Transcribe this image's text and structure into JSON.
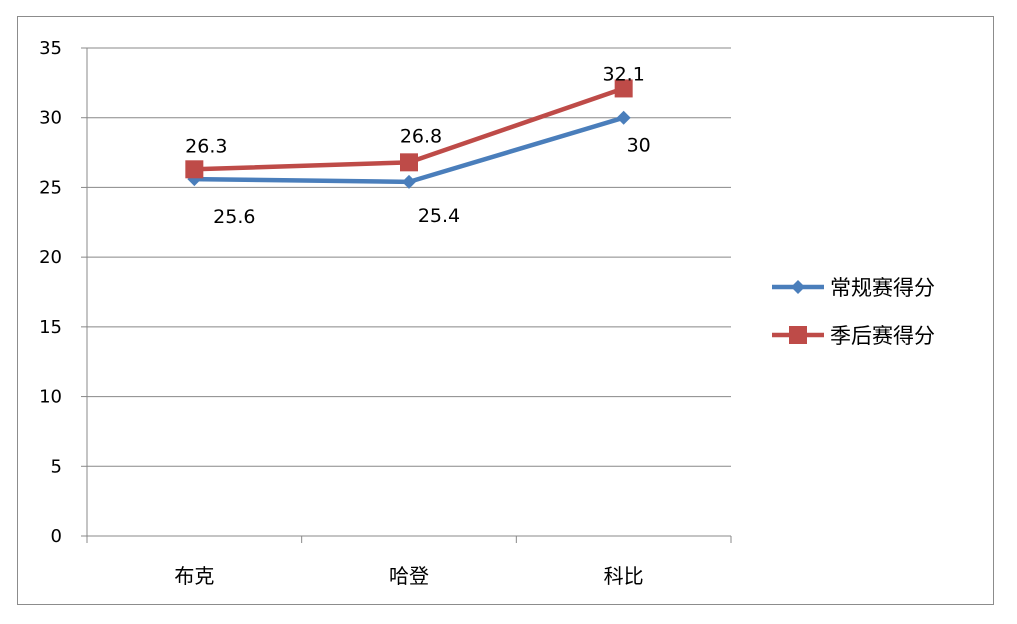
{
  "chart_data": {
    "type": "line",
    "categories": [
      "布克",
      "哈登",
      "科比"
    ],
    "series": [
      {
        "name": "常规赛得分",
        "values": [
          25.6,
          25.4,
          30
        ],
        "color": "#4a7ebb",
        "marker": "diamond",
        "labels": [
          "25.6",
          "25.4",
          "30"
        ]
      },
      {
        "name": "季后赛得分",
        "values": [
          26.3,
          26.8,
          32.1
        ],
        "color": "#be4b48",
        "marker": "square",
        "labels": [
          "26.3",
          "26.8",
          "32.1"
        ]
      }
    ],
    "ylim": [
      0,
      35
    ],
    "yticks": [
      "0",
      "5",
      "10",
      "15",
      "20",
      "25",
      "30",
      "35"
    ],
    "grid": true,
    "legend_position": "right"
  }
}
